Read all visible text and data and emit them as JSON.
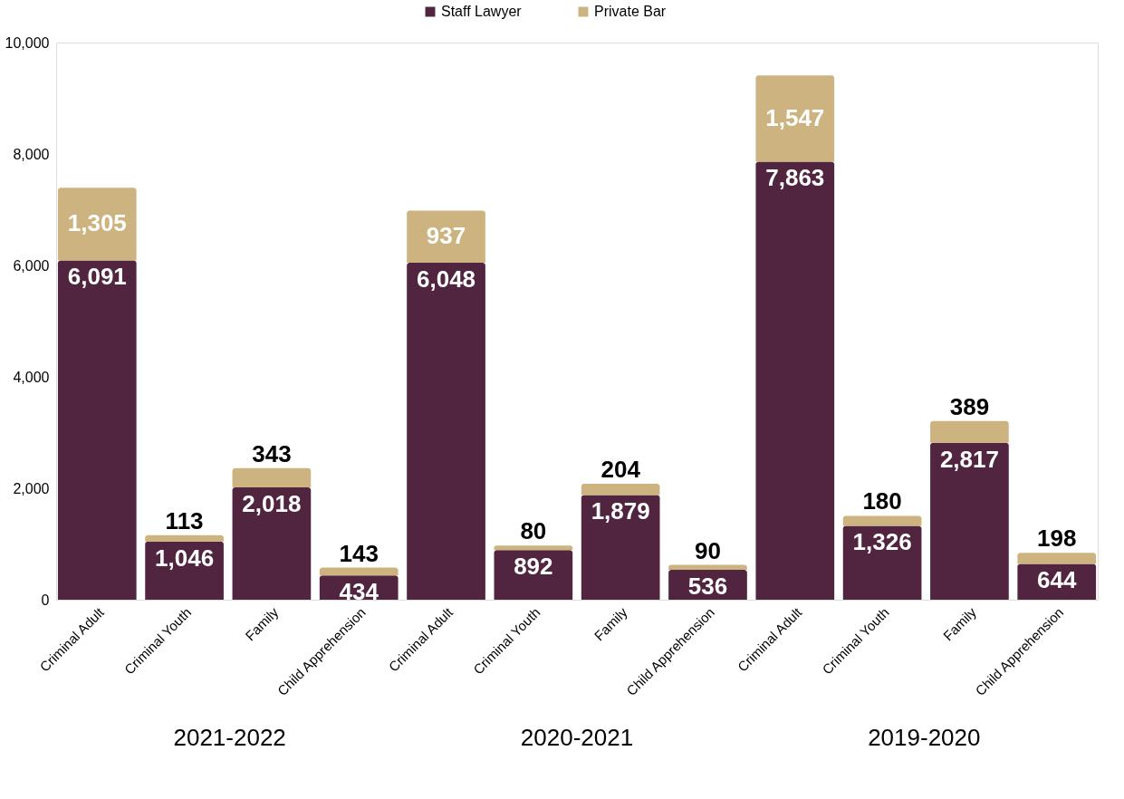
{
  "chart_data": {
    "type": "bar",
    "stacked": true,
    "legend": "top",
    "grid": false,
    "categories": [
      "Criminal Adult",
      "Criminal Youth",
      "Family",
      "Child Apprehension",
      "Criminal Adult",
      "Criminal Youth",
      "Family",
      "Child Apprehension",
      "Criminal Adult",
      "Criminal Youth",
      "Family",
      "Child Apprehension"
    ],
    "series": [
      {
        "name": "Staff Lawyer",
        "color": "#512440",
        "values": [
          6091,
          1046,
          2018,
          434,
          6048,
          892,
          1879,
          536,
          7863,
          1326,
          2817,
          644
        ],
        "value_labels": [
          "6,091",
          "1,046",
          "2,018",
          "434",
          "6,048",
          "892",
          "1,879",
          "536",
          "7,863",
          "1,326",
          "2,817",
          "644"
        ]
      },
      {
        "name": "Private Bar",
        "color": "#cdb380",
        "values": [
          1305,
          113,
          343,
          143,
          937,
          80,
          204,
          90,
          1547,
          180,
          389,
          198
        ],
        "value_labels": [
          "1,305",
          "113",
          "343",
          "143",
          "937",
          "80",
          "204",
          "90",
          "1,547",
          "180",
          "389",
          "198"
        ]
      }
    ],
    "ylim": [
      0,
      10000
    ],
    "yticks": [
      {
        "value": 0,
        "label": "0"
      },
      {
        "value": 2000,
        "label": "2,000"
      },
      {
        "value": 4000,
        "label": "4,000"
      },
      {
        "value": 6000,
        "label": "6,000"
      },
      {
        "value": 8000,
        "label": "8,000"
      },
      {
        "value": 10000,
        "label": "10,000"
      }
    ],
    "annotations": [
      "2021-2022",
      "2020-2021",
      "2019-2020"
    ]
  }
}
